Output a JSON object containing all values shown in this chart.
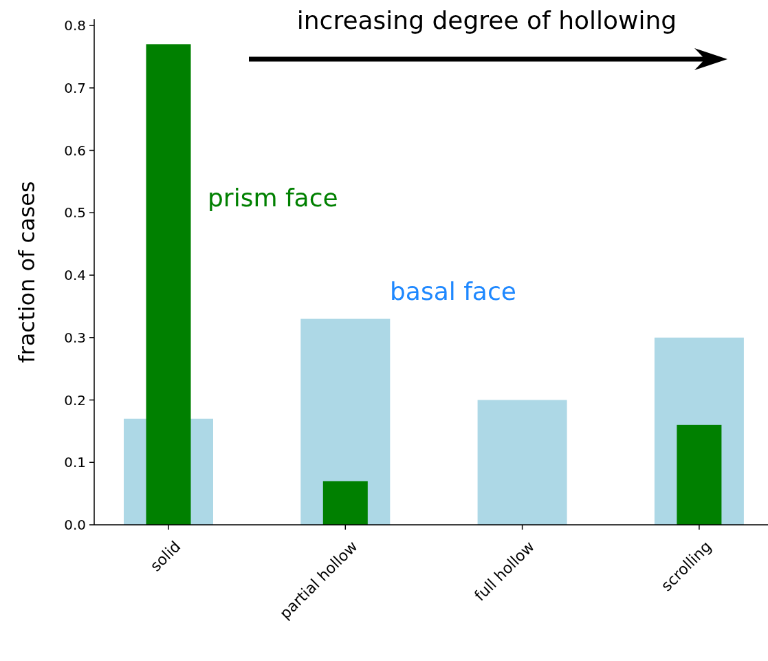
{
  "chart_data": {
    "type": "bar",
    "ylabel": "fraction of cases",
    "categories": [
      "solid",
      "partial hollow",
      "full hollow",
      "scrolling"
    ],
    "series": [
      {
        "name": "basal face",
        "color": "#add8e6",
        "values": [
          0.17,
          0.33,
          0.2,
          0.3
        ]
      },
      {
        "name": "prism face",
        "color": "#008000",
        "values": [
          0.77,
          0.07,
          0,
          0.16
        ]
      }
    ],
    "ylim": [
      0,
      0.81
    ],
    "yticks": [
      {
        "value": 0,
        "label": "0.0"
      },
      0.1,
      0.2,
      0.3,
      0.4,
      0.5,
      0.6,
      0.7,
      0.8
    ],
    "annotations": [
      "increasing degree of hollowing"
    ],
    "legend": false,
    "grid": false
  }
}
